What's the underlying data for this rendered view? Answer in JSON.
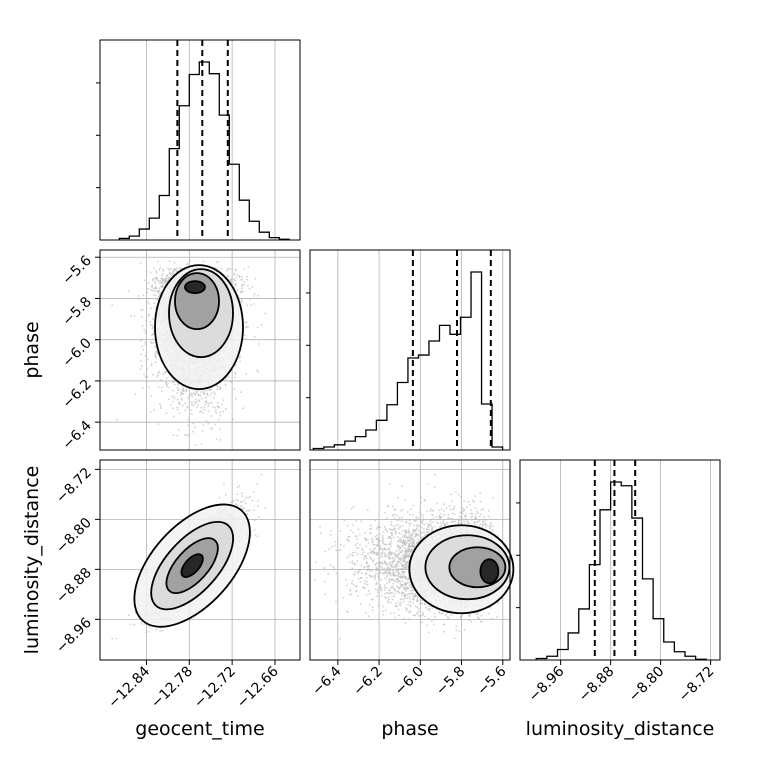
{
  "chart_data": {
    "type": "corner",
    "parameters": [
      "geocent_time",
      "phase",
      "luminosity_distance"
    ],
    "axis_labels": {
      "x": [
        "geocent_time",
        "phase",
        "luminosity_distance"
      ],
      "y": [
        "",
        "phase",
        "luminosity_distance"
      ]
    },
    "ranges": {
      "geocent_time": [
        -12.905,
        -12.625
      ],
      "phase": [
        -6.535,
        -5.565
      ],
      "luminosity_distance": [
        -9.025,
        -8.705
      ]
    },
    "ticks": {
      "geocent_time": [
        "−12.84",
        "−12.78",
        "−12.72",
        "−12.66"
      ],
      "phase": [
        "−6.4",
        "−6.2",
        "−6.0",
        "−5.8",
        "−5.6"
      ],
      "luminosity_distance": [
        "−8.96",
        "−8.88",
        "−8.80",
        "−8.72"
      ]
    },
    "tick_values": {
      "geocent_time": [
        -12.84,
        -12.78,
        -12.72,
        -12.66
      ],
      "phase": [
        -6.4,
        -6.2,
        -6.0,
        -5.8,
        -5.6
      ],
      "luminosity_distance": [
        -8.96,
        -8.88,
        -8.8,
        -8.72
      ]
    },
    "histograms": {
      "geocent_time": {
        "bin_edges": [
          -12.878,
          -12.864,
          -12.85,
          -12.836,
          -12.822,
          -12.808,
          -12.794,
          -12.78,
          -12.766,
          -12.752,
          -12.738,
          -12.724,
          -12.71,
          -12.696,
          -12.682,
          -12.668,
          -12.654,
          -12.64
        ],
        "counts": [
          2,
          5,
          14,
          28,
          57,
          117,
          172,
          212,
          228,
          213,
          160,
          97,
          51,
          24,
          10,
          3,
          1
        ],
        "quantiles": [
          -12.7967,
          -12.7618,
          -12.7261
        ]
      },
      "phase": {
        "bin_edges": [
          -6.519,
          -6.468,
          -6.417,
          -6.366,
          -6.315,
          -6.264,
          -6.213,
          -6.162,
          -6.111,
          -6.06,
          -6.009,
          -5.958,
          -5.907,
          -5.856,
          -5.805,
          -5.754,
          -5.703,
          -5.652,
          -5.601
        ],
        "counts": [
          2,
          4,
          7,
          12,
          18,
          27,
          40,
          61,
          91,
          124,
          128,
          147,
          168,
          156,
          179,
          240,
          62,
          4
        ],
        "quantiles": [
          -6.036,
          -5.822,
          -5.658
        ]
      },
      "luminosity_distance": {
        "bin_edges": [
          -8.999,
          -8.982,
          -8.965,
          -8.948,
          -8.931,
          -8.914,
          -8.897,
          -8.88,
          -8.863,
          -8.846,
          -8.829,
          -8.812,
          -8.795,
          -8.778,
          -8.761,
          -8.744,
          -8.727
        ],
        "counts": [
          2,
          5,
          14,
          36,
          68,
          127,
          200,
          237,
          232,
          189,
          108,
          55,
          24,
          11,
          5,
          1
        ],
        "quantiles": [
          -8.9053,
          -8.8739,
          -8.8407
        ]
      }
    },
    "pairs": [
      {
        "x": "geocent_time",
        "y": "phase",
        "mode": [
          -12.772,
          -5.745
        ]
      },
      {
        "x": "geocent_time",
        "y": "luminosity_distance",
        "mode": [
          -12.776,
          -8.874
        ]
      },
      {
        "x": "phase",
        "y": "luminosity_distance",
        "mode": [
          -5.665,
          -8.883
        ]
      }
    ],
    "grid": true,
    "legend": "none",
    "colors": {
      "line": "#000000",
      "grid": "#b0b0b0",
      "scatter": "#bdbdbd"
    }
  }
}
